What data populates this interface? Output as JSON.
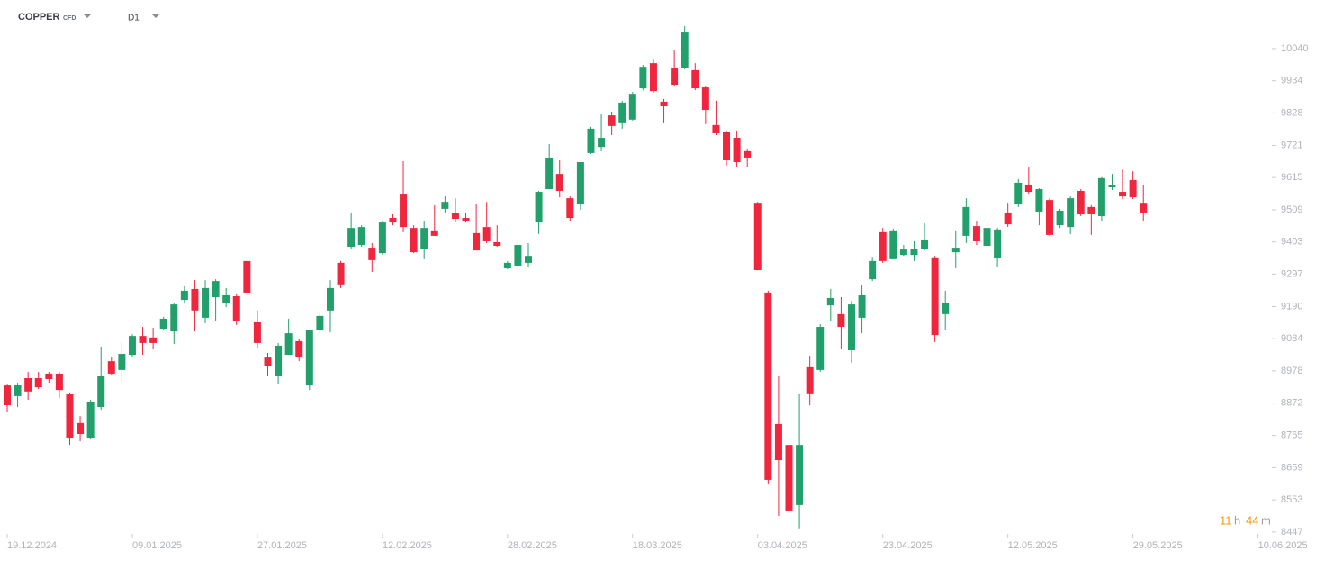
{
  "header": {
    "instrument": "COPPER",
    "instrument_type": "CFD",
    "timeframe": "D1"
  },
  "countdown": {
    "hours": "11",
    "hours_unit": "h",
    "minutes": "44",
    "minutes_unit": "m"
  },
  "chart_data": {
    "type": "candlestick",
    "up_color": "#22a06b",
    "down_color": "#f0263e",
    "categories": [
      "19.12.2024",
      null,
      null,
      null,
      null,
      null,
      null,
      null,
      null,
      null,
      null,
      null,
      "09.01.2025",
      null,
      null,
      null,
      null,
      null,
      null,
      null,
      null,
      null,
      null,
      null,
      "27.01.2025",
      null,
      null,
      null,
      null,
      null,
      null,
      null,
      null,
      null,
      null,
      null,
      "12.02.2025",
      null,
      null,
      null,
      null,
      null,
      null,
      null,
      null,
      null,
      null,
      null,
      "28.02.2025",
      null,
      null,
      null,
      null,
      null,
      null,
      null,
      null,
      null,
      null,
      null,
      "18.03.2025",
      null,
      null,
      null,
      null,
      null,
      null,
      null,
      null,
      null,
      null,
      null,
      "03.04.2025",
      null,
      null,
      null,
      null,
      null,
      null,
      null,
      null,
      null,
      null,
      null,
      "23.04.2025",
      null,
      null,
      null,
      null,
      null,
      null,
      null,
      null,
      null,
      null,
      null,
      "12.05.2025",
      null,
      null,
      null,
      null,
      null,
      null,
      null,
      null,
      null,
      null,
      null,
      "29.05.2025",
      null,
      null,
      null,
      null,
      null,
      null,
      null,
      null,
      null,
      null,
      null,
      "10.06.2025"
    ],
    "open": [
      8930,
      8895,
      8954,
      8954,
      8969,
      8969,
      8901,
      8806,
      8758,
      8859,
      9010,
      8981,
      9031,
      9093,
      9088,
      9117,
      9108,
      9212,
      9248,
      9153,
      9221,
      9203,
      9224,
      9340,
      9138,
      9022,
      8963,
      9031,
      9076,
      8930,
      9114,
      9177,
      9334,
      9387,
      9393,
      9384,
      9366,
      9482,
      9562,
      9449,
      9381,
      9441,
      9512,
      9497,
      9482,
      9432,
      9452,
      9402,
      9316,
      9325,
      9334,
      9467,
      9577,
      9627,
      9547,
      9527,
      9696,
      9716,
      9820,
      9794,
      9806,
      9909,
      9992,
      9865,
      9977,
      9975,
      9969,
      9912,
      9788,
      9764,
      9746,
      9702,
      9532,
      9236,
      8803,
      8734,
      8536,
      8990,
      8981,
      9194,
      9165,
      9046,
      9153,
      9280,
      9435,
      9346,
      9360,
      9360,
      9378,
      9352,
      9165,
      9369,
      9423,
      9455,
      9390,
      9349,
      9500,
      9527,
      9592,
      9503,
      9541,
      9458,
      9452,
      9571,
      9518,
      9488,
      9583,
      9568,
      9607,
      9532,
      null,
      null,
      null,
      null,
      null,
      null,
      null,
      null,
      null,
      null,
      null
    ],
    "high": [
      8936,
      8939,
      8975,
      8975,
      8975,
      8975,
      8907,
      8829,
      8883,
      9058,
      9025,
      9073,
      9099,
      9123,
      9120,
      9156,
      9203,
      9257,
      9277,
      9277,
      9280,
      9251,
      9230,
      9340,
      9177,
      9037,
      9070,
      9150,
      9085,
      9114,
      9171,
      9277,
      9340,
      9500,
      9458,
      9399,
      9473,
      9494,
      9669,
      9458,
      9473,
      9524,
      9553,
      9547,
      9500,
      9527,
      9535,
      9458,
      9340,
      9414,
      9399,
      9571,
      9725,
      9672,
      9553,
      9666,
      9782,
      9823,
      9832,
      9868,
      9897,
      9986,
      10007,
      9874,
      10034,
      10114,
      9992,
      9915,
      9868,
      9770,
      9770,
      9708,
      9535,
      9242,
      8960,
      8829,
      8904,
      9028,
      9132,
      9248,
      9221,
      9209,
      9260,
      9354,
      9449,
      9447,
      9393,
      9405,
      9464,
      9357,
      9242,
      9441,
      9547,
      9473,
      9458,
      9449,
      9532,
      9610,
      9648,
      9580,
      9547,
      9512,
      9553,
      9577,
      9524,
      9616,
      9627,
      9642,
      9636,
      9592,
      null,
      null,
      null,
      null,
      null,
      null,
      null,
      null,
      null,
      null,
      null
    ],
    "low": [
      8844,
      8859,
      8883,
      8918,
      8939,
      8889,
      8734,
      8746,
      8755,
      8850,
      8966,
      8939,
      9025,
      9031,
      9049,
      9111,
      9067,
      9200,
      9108,
      9135,
      9141,
      9188,
      9129,
      9236,
      9055,
      8960,
      8936,
      9031,
      9010,
      8915,
      9102,
      9105,
      9251,
      9381,
      9387,
      9304,
      9360,
      9458,
      9435,
      9366,
      9346,
      9423,
      9500,
      9470,
      9467,
      9375,
      9399,
      9387,
      9313,
      9316,
      9319,
      9429,
      9577,
      9550,
      9473,
      9509,
      9693,
      9702,
      9755,
      9776,
      9803,
      9903,
      9894,
      9794,
      9915,
      9972,
      9903,
      9791,
      9755,
      9654,
      9648,
      9651,
      9310,
      8607,
      8500,
      8479,
      8459,
      8865,
      8975,
      9141,
      9049,
      9004,
      9102,
      9274,
      9334,
      9346,
      9357,
      9340,
      9375,
      9073,
      9114,
      9316,
      9399,
      9393,
      9310,
      9319,
      9452,
      9518,
      9562,
      9458,
      9423,
      9449,
      9429,
      9488,
      9426,
      9473,
      9574,
      9544,
      9544,
      9473,
      null,
      null,
      null,
      null,
      null,
      null,
      null,
      null,
      null,
      null,
      null
    ],
    "close": [
      8865,
      8933,
      8910,
      8924,
      8951,
      8915,
      8758,
      8770,
      8877,
      8960,
      8969,
      9034,
      9093,
      9070,
      9070,
      9150,
      9197,
      9242,
      9177,
      9251,
      9274,
      9227,
      9141,
      9236,
      9070,
      8993,
      9061,
      9102,
      9022,
      9114,
      9159,
      9251,
      9263,
      9449,
      9452,
      9343,
      9467,
      9467,
      9452,
      9369,
      9449,
      9423,
      9535,
      9479,
      9473,
      9375,
      9405,
      9390,
      9334,
      9393,
      9357,
      9568,
      9678,
      9571,
      9482,
      9666,
      9776,
      9746,
      9785,
      9862,
      9891,
      9980,
      9900,
      9850,
      9921,
      10093,
      9909,
      9838,
      9761,
      9672,
      9666,
      9681,
      9310,
      8619,
      8684,
      8518,
      8734,
      8904,
      9123,
      9218,
      9123,
      9197,
      9227,
      9340,
      9340,
      9441,
      9378,
      9381,
      9411,
      9096,
      9203,
      9384,
      9518,
      9405,
      9449,
      9444,
      9461,
      9598,
      9568,
      9577,
      9426,
      9506,
      9547,
      9494,
      9494,
      9613,
      9589,
      9553,
      9550,
      9500,
      null,
      null,
      null,
      null,
      null,
      null,
      null,
      null,
      null,
      null,
      null
    ],
    "ylim": [
      8420,
      10200
    ],
    "yticks": [
      10040,
      9934,
      9828,
      9721,
      9615,
      9509,
      9403,
      9297,
      9190,
      9084,
      8978,
      8872,
      8765,
      8659,
      8553,
      8447
    ]
  }
}
